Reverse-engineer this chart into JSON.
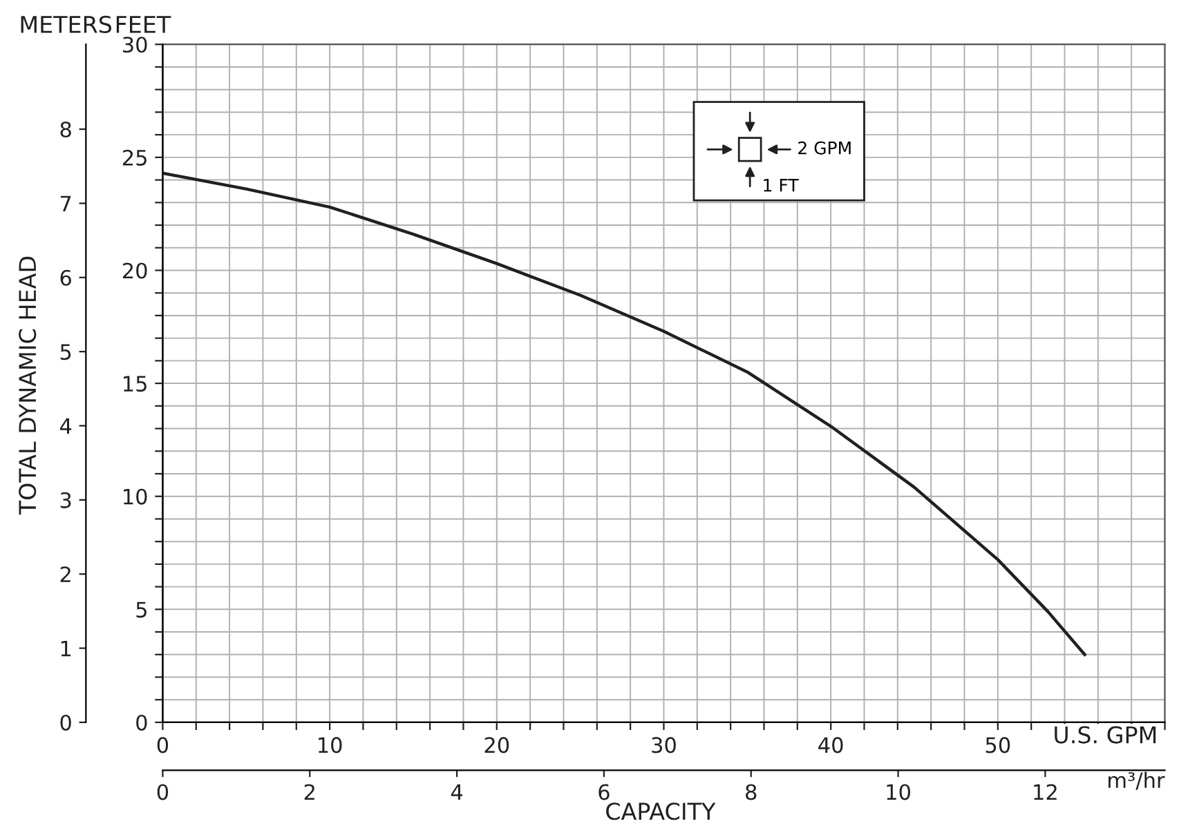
{
  "chart_data": {
    "type": "line",
    "x": [
      0,
      5,
      10,
      15,
      20,
      25,
      30,
      35,
      40,
      45,
      50,
      53,
      55.2
    ],
    "series": [
      {
        "color": "#231f20",
        "values": [
          24.3,
          23.6,
          22.8,
          21.6,
          20.3,
          18.9,
          17.3,
          15.5,
          13.1,
          10.4,
          7.2,
          4.9,
          3.0
        ]
      }
    ],
    "xlim": [
      0,
      60
    ],
    "xticks": [
      0,
      {
        "value": 2,
        "label": null
      },
      {
        "value": 4,
        "label": null
      },
      {
        "value": 6,
        "label": null
      },
      {
        "value": 8,
        "label": null
      },
      10,
      {
        "value": 12,
        "label": null
      },
      {
        "value": 14,
        "label": null
      },
      {
        "value": 16,
        "label": null
      },
      {
        "value": 18,
        "label": null
      },
      20,
      {
        "value": 22,
        "label": null
      },
      {
        "value": 24,
        "label": null
      },
      {
        "value": 26,
        "label": null
      },
      {
        "value": 28,
        "label": null
      },
      30,
      {
        "value": 32,
        "label": null
      },
      {
        "value": 34,
        "label": null
      },
      {
        "value": 36,
        "label": null
      },
      {
        "value": 38,
        "label": null
      },
      40,
      {
        "value": 42,
        "label": null
      },
      {
        "value": 44,
        "label": null
      },
      {
        "value": 46,
        "label": null
      },
      {
        "value": 48,
        "label": null
      },
      50,
      {
        "value": 52,
        "label": null
      },
      {
        "value": 54,
        "label": null
      },
      {
        "value": 56,
        "label": null
      },
      {
        "value": 58,
        "label": null
      },
      {
        "value": 60,
        "label": null
      }
    ],
    "ylim": [
      0,
      30
    ],
    "yticks": [
      0,
      {
        "value": 1,
        "label": null
      },
      {
        "value": 2,
        "label": null
      },
      {
        "value": 3,
        "label": null
      },
      {
        "value": 4,
        "label": null
      },
      5,
      {
        "value": 6,
        "label": null
      },
      {
        "value": 7,
        "label": null
      },
      {
        "value": 8,
        "label": null
      },
      {
        "value": 9,
        "label": null
      },
      10,
      {
        "value": 11,
        "label": null
      },
      {
        "value": 12,
        "label": null
      },
      {
        "value": 13,
        "label": null
      },
      {
        "value": 14,
        "label": null
      },
      15,
      {
        "value": 16,
        "label": null
      },
      {
        "value": 17,
        "label": null
      },
      {
        "value": 18,
        "label": null
      },
      {
        "value": 19,
        "label": null
      },
      20,
      {
        "value": 21,
        "label": null
      },
      {
        "value": 22,
        "label": null
      },
      {
        "value": 23,
        "label": null
      },
      {
        "value": 24,
        "label": null
      },
      25,
      {
        "value": 26,
        "label": null
      },
      {
        "value": 27,
        "label": null
      },
      {
        "value": 28,
        "label": null
      },
      {
        "value": 29,
        "label": null
      },
      30
    ],
    "y2lim": [
      0,
      9.144
    ],
    "y2ticks": [
      0,
      1,
      2,
      3,
      4,
      5,
      6,
      7,
      8
    ],
    "x2lim": [
      0,
      13.627
    ],
    "x2ticks": [
      0,
      2,
      4,
      6,
      8,
      10,
      12
    ],
    "xlabel": "U.S. GPM",
    "x2label": "m³/hr",
    "ylabel": "FEET",
    "y2label": "METERS",
    "annotations": [
      "TOTAL DYNAMIC HEAD",
      "CAPACITY",
      "2 GPM",
      "1 FT"
    ],
    "grid": true,
    "line_style": "solid"
  }
}
